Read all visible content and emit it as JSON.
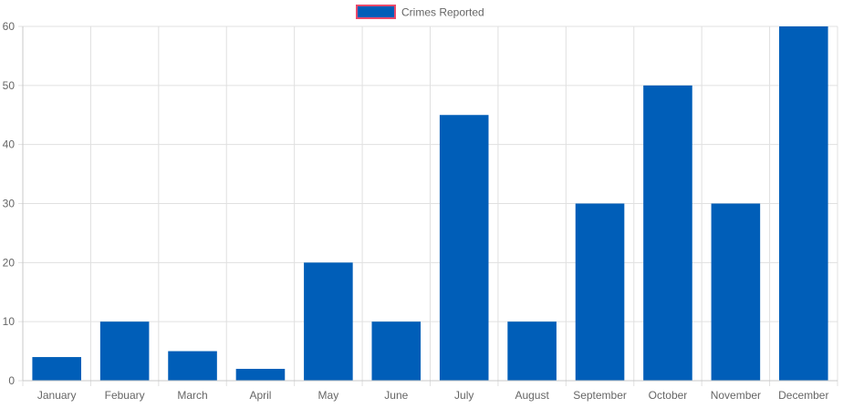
{
  "chart_data": {
    "type": "bar",
    "categories": [
      "January",
      "Febuary",
      "March",
      "April",
      "May",
      "June",
      "July",
      "August",
      "September",
      "October",
      "November",
      "December"
    ],
    "series": [
      {
        "name": "Crimes Reported",
        "values": [
          4,
          10,
          5,
          2,
          20,
          10,
          45,
          10,
          30,
          50,
          30,
          60
        ]
      }
    ],
    "ylim": [
      0,
      60
    ],
    "yticks": [
      "0",
      "10",
      "20",
      "30",
      "40",
      "50",
      "60"
    ],
    "grid": true,
    "legend": "top-center",
    "colors": {
      "bar": "#005eb8",
      "legend_border": "#e8496b",
      "grid": "#e0e0e0",
      "text": "#666666"
    }
  }
}
